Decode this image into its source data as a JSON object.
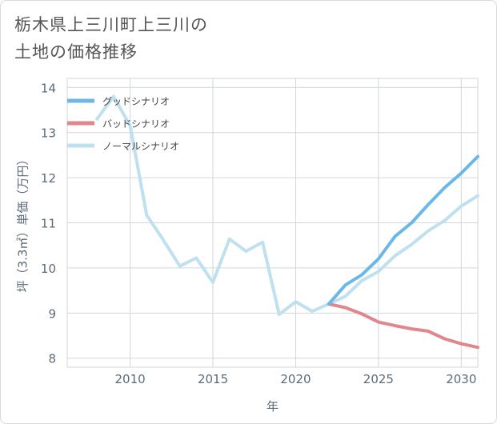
{
  "page": {
    "title_line1": "栃木県上三川町上三川の",
    "title_line2": "土地の価格推移"
  },
  "chart_data": {
    "type": "line",
    "title": "栃木県上三川町上三川の土地の価格推移",
    "xlabel": "年",
    "ylabel": "坪（3.3㎡）単価（万円）",
    "xlim": [
      2006.2,
      2031
    ],
    "ylim": [
      7.8,
      14.2
    ],
    "xticks": [
      2010,
      2015,
      2020,
      2025,
      2030
    ],
    "yticks": [
      8,
      9,
      10,
      11,
      12,
      13,
      14
    ],
    "grid": true,
    "legend_position": "top-left",
    "series": [
      {
        "name": "グッドシナリオ",
        "color": "#6bb8e8",
        "x": [
          2022,
          2023,
          2024,
          2025,
          2026,
          2027,
          2028,
          2029,
          2030,
          2031
        ],
        "values": [
          9.2,
          9.62,
          9.85,
          10.2,
          10.7,
          11.0,
          11.4,
          11.78,
          12.1,
          12.47
        ]
      },
      {
        "name": "バッドシナリオ",
        "color": "#e0868c",
        "x": [
          2022,
          2023,
          2024,
          2025,
          2026,
          2027,
          2028,
          2029,
          2030,
          2031
        ],
        "values": [
          9.2,
          9.12,
          8.98,
          8.8,
          8.72,
          8.65,
          8.6,
          8.43,
          8.32,
          8.24
        ]
      },
      {
        "name": "ノーマルシナリオ",
        "color": "#bfe0ee",
        "x": [
          2008,
          2009,
          2010,
          2011,
          2012,
          2013,
          2014,
          2015,
          2016,
          2017,
          2018,
          2019,
          2020,
          2021,
          2022,
          2023,
          2024,
          2025,
          2026,
          2027,
          2028,
          2029,
          2030,
          2031
        ],
        "values": [
          13.3,
          13.8,
          13.15,
          11.17,
          10.62,
          10.04,
          10.22,
          9.68,
          10.64,
          10.37,
          10.57,
          8.97,
          9.25,
          9.04,
          9.2,
          9.37,
          9.72,
          9.92,
          10.27,
          10.52,
          10.82,
          11.05,
          11.37,
          11.6
        ]
      }
    ]
  }
}
